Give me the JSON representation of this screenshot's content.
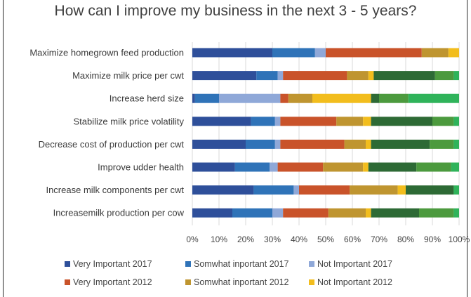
{
  "chart_data": {
    "type": "bar",
    "stacked": true,
    "orientation": "horizontal",
    "title": "How can I improve my business in the next 3 - 5 years?",
    "xlim": [
      0,
      100
    ],
    "x_ticks": [
      "0%",
      "10%",
      "20%",
      "30%",
      "40%",
      "50%",
      "60%",
      "70%",
      "80%",
      "90%",
      "100%"
    ],
    "grid": true,
    "legend_position": "bottom",
    "categories": [
      "Maximize homegrown feed production",
      "Maximize milk price per cwt",
      "Increase herd size",
      "Stabilize milk price volatility",
      "Decrease cost of production per cwt",
      "Improve udder health",
      "Increase milk components per cwt",
      "Increasemilk production per cow"
    ],
    "series": [
      {
        "name": "Very Important 2017",
        "color": "#2e4f9a",
        "values": [
          30,
          24,
          1,
          22,
          20,
          16,
          23,
          15
        ]
      },
      {
        "name": "Somwhat inportant 2017",
        "color": "#2f73b8",
        "values": [
          16,
          8,
          9,
          9,
          11,
          13,
          15,
          15
        ]
      },
      {
        "name": "Not Important 2017",
        "color": "#8fa8d8",
        "values": [
          4,
          2,
          23,
          2,
          2,
          3,
          2,
          4
        ]
      },
      {
        "name": "Very Important 2012",
        "color": "#c9532a",
        "values": [
          36,
          24,
          3,
          21,
          24,
          17,
          19,
          17
        ]
      },
      {
        "name": "Somwhat inportant 2012",
        "color": "#bf9530",
        "values": [
          10,
          8,
          9,
          10,
          8,
          15,
          18,
          14
        ]
      },
      {
        "name": "Not Important 2012",
        "color": "#f2bd1d",
        "values": [
          4,
          2,
          22,
          3,
          2,
          2,
          3,
          2
        ]
      },
      {
        "name": "",
        "color": "#2d6a35",
        "values": [
          0,
          23,
          3,
          23,
          22,
          18,
          18,
          18
        ]
      },
      {
        "name": "",
        "color": "#4c9a3e",
        "values": [
          0,
          7,
          11,
          8,
          9,
          13,
          0,
          13
        ]
      },
      {
        "name": "",
        "color": "#2fb35a",
        "values": [
          0,
          2,
          20,
          2,
          2,
          3,
          2,
          2
        ]
      }
    ]
  }
}
